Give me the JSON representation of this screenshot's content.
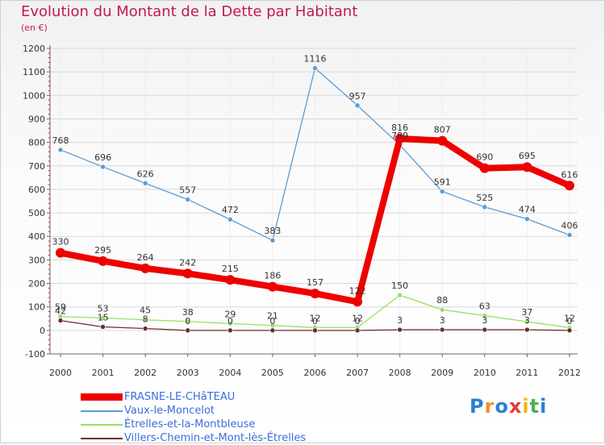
{
  "header": {
    "title": "Evolution du Montant de la Dette par Habitant",
    "subtitle": "(en €)"
  },
  "logo": {
    "text": "Proxiti"
  },
  "colors": {
    "red": "#ee0000",
    "blue": "#5b9bd5",
    "green": "#99dd66",
    "brown": "#6b2d2d",
    "axis": "#666666",
    "grid": "#d8d8d8",
    "title": "#c2185b",
    "legend_text": "#3a6fd8"
  },
  "chart_data": {
    "type": "line",
    "x": [
      "2000",
      "2001",
      "2002",
      "2003",
      "2004",
      "2005",
      "2006",
      "2007",
      "2008",
      "2009",
      "2010",
      "2011",
      "2012"
    ],
    "ylim": [
      -100,
      1200
    ],
    "yticks": [
      -100,
      0,
      100,
      200,
      300,
      400,
      500,
      600,
      700,
      800,
      900,
      1000,
      1100,
      1200
    ],
    "grid": true,
    "legend_position": "bottom-left",
    "series": [
      {
        "name": "FRASNE-LE-CHâTEAU",
        "color": "red",
        "values": [
          330,
          295,
          264,
          242,
          215,
          186,
          157,
          122,
          816,
          807,
          690,
          695,
          616
        ],
        "labels": [
          "330",
          "295",
          "264",
          "242",
          "215",
          "186",
          "157",
          "122",
          "816",
          "807",
          "690",
          "695",
          "616"
        ]
      },
      {
        "name": "Vaux-le-Moncelot",
        "color": "blue",
        "values": [
          768,
          696,
          626,
          557,
          472,
          383,
          1116,
          957,
          789,
          591,
          525,
          474,
          406
        ],
        "labels": [
          "768",
          "696",
          "626",
          "557",
          "472",
          "383",
          "1116",
          "957",
          "789",
          "591",
          "525",
          "474",
          "406"
        ]
      },
      {
        "name": "Étrelles-et-la-Montbleuse",
        "color": "green",
        "values": [
          59,
          53,
          45,
          38,
          29,
          21,
          12,
          12,
          150,
          88,
          63,
          37,
          12
        ],
        "labels": [
          "59",
          "53",
          "45",
          "38",
          "29",
          "21",
          "12",
          "12",
          "150",
          "88",
          "63",
          "37",
          "12"
        ]
      },
      {
        "name": "Villers-Chemin-et-Mont-lès-Étrelles",
        "color": "brown",
        "values": [
          42,
          15,
          8,
          0,
          0,
          0,
          0,
          0,
          3,
          3,
          3,
          3,
          0
        ],
        "labels": [
          "42",
          "15",
          "8",
          "0",
          "0",
          "0",
          "0",
          "0",
          "3",
          "3",
          "3",
          "3",
          "0"
        ]
      }
    ]
  }
}
